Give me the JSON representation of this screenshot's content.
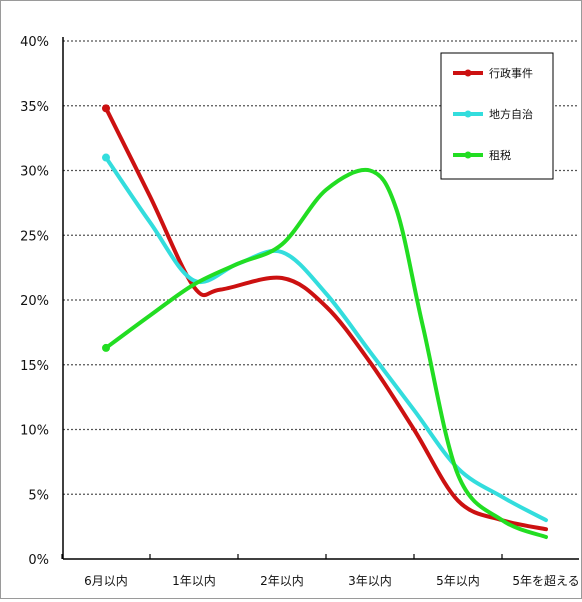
{
  "chart_data": {
    "type": "line",
    "categories": [
      "6月以内",
      "1年以内",
      "2年以内",
      "3年以内",
      "5年以内",
      "5年を超える"
    ],
    "y_ticks": [
      "0%",
      "5%",
      "10%",
      "15%",
      "20%",
      "25%",
      "30%",
      "35%",
      "40%"
    ],
    "ylim": [
      0,
      40
    ],
    "grid": true,
    "legend_position": "top-right",
    "series": [
      {
        "name": "行政事件",
        "color": "#cc1111",
        "points": [
          [
            0,
            34.8
          ],
          [
            0.5,
            28.0
          ],
          [
            1,
            21.0
          ],
          [
            1.3,
            20.8
          ],
          [
            2,
            21.7
          ],
          [
            2.5,
            19.5
          ],
          [
            3,
            15.2
          ],
          [
            3.5,
            10.0
          ],
          [
            4,
            4.5
          ],
          [
            4.5,
            3.0
          ],
          [
            5,
            2.3
          ]
        ]
      },
      {
        "name": "地方自治",
        "color": "#33dddd",
        "points": [
          [
            0,
            31.0
          ],
          [
            0.5,
            26.0
          ],
          [
            1,
            21.5
          ],
          [
            1.5,
            22.8
          ],
          [
            2,
            23.7
          ],
          [
            2.5,
            20.5
          ],
          [
            3,
            16.0
          ],
          [
            3.5,
            11.5
          ],
          [
            4,
            7.0
          ],
          [
            4.5,
            4.8
          ],
          [
            5,
            3.0
          ]
        ]
      },
      {
        "name": "租税",
        "color": "#22dd22",
        "points": [
          [
            0,
            16.3
          ],
          [
            0.5,
            18.8
          ],
          [
            1,
            21.2
          ],
          [
            1.5,
            22.8
          ],
          [
            2,
            24.3
          ],
          [
            2.5,
            28.5
          ],
          [
            3,
            30.0
          ],
          [
            3.3,
            27.0
          ],
          [
            3.6,
            18.0
          ],
          [
            4,
            6.5
          ],
          [
            4.5,
            3.0
          ],
          [
            5,
            1.7
          ]
        ]
      }
    ]
  }
}
